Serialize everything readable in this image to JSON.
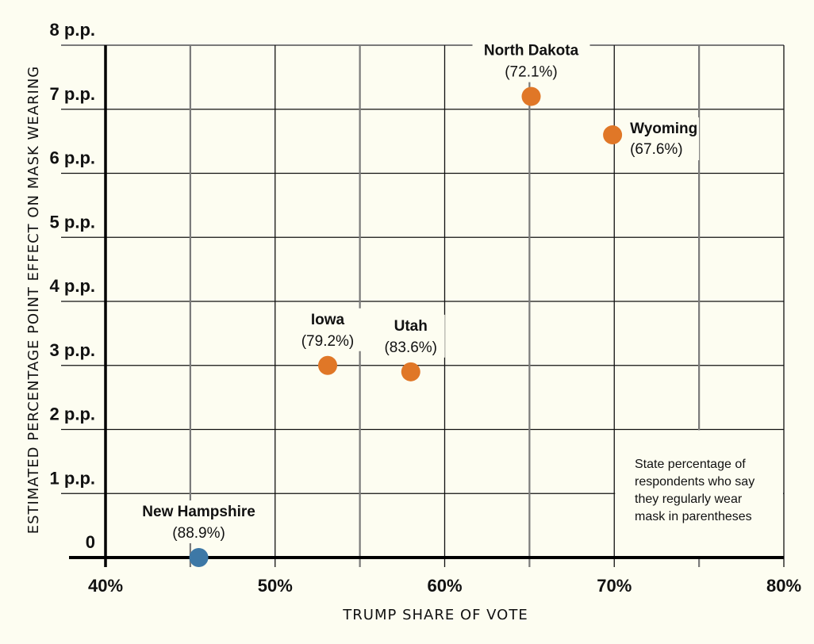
{
  "chart_data": {
    "type": "scatter",
    "title": "",
    "xlabel": "TRUMP SHARE OF VOTE",
    "ylabel": "ESTIMATED PERCENTAGE POINT EFFECT ON MASK WEARING",
    "xlim": [
      40,
      80
    ],
    "ylim": [
      0,
      8
    ],
    "x_ticks": [
      40,
      50,
      60,
      70,
      80
    ],
    "x_tick_labels": [
      "40%",
      "50%",
      "60%",
      "70%",
      "80%"
    ],
    "x_minor_ticks": [
      45,
      55,
      65,
      75
    ],
    "y_ticks": [
      0,
      1,
      2,
      3,
      4,
      5,
      6,
      7,
      8
    ],
    "y_tick_labels": [
      "0",
      "1 p.p.",
      "2 p.p.",
      "3 p.p.",
      "4 p.p.",
      "5 p.p.",
      "6 p.p.",
      "7 p.p.",
      "8 p.p."
    ],
    "grid": true,
    "points": [
      {
        "name": "New Hampshire",
        "mask_pct": "(88.9%)",
        "x": 45.5,
        "y": 0.0,
        "color": "#3D78A6",
        "label_pos": "above"
      },
      {
        "name": "Iowa",
        "mask_pct": "(79.2%)",
        "x": 53.1,
        "y": 3.0,
        "color": "#E07727",
        "label_pos": "above"
      },
      {
        "name": "Utah",
        "mask_pct": "(83.6%)",
        "x": 58.0,
        "y": 2.9,
        "color": "#E07727",
        "label_pos": "above"
      },
      {
        "name": "North Dakota",
        "mask_pct": "(72.1%)",
        "x": 65.1,
        "y": 7.2,
        "color": "#E07727",
        "label_pos": "above"
      },
      {
        "name": "Wyoming",
        "mask_pct": "(67.6%)",
        "x": 69.9,
        "y": 6.6,
        "color": "#E07727",
        "label_pos": "right"
      }
    ],
    "annotation": {
      "lines": [
        "State percentage of",
        "respondents who say",
        "they regularly wear",
        "mask in parentheses"
      ],
      "placement": "bottom-right"
    }
  },
  "colors": {
    "background": "#FDFDF1",
    "grid_major": "#111111",
    "grid_minor": "#7A7A7A",
    "axis": "#000000"
  }
}
